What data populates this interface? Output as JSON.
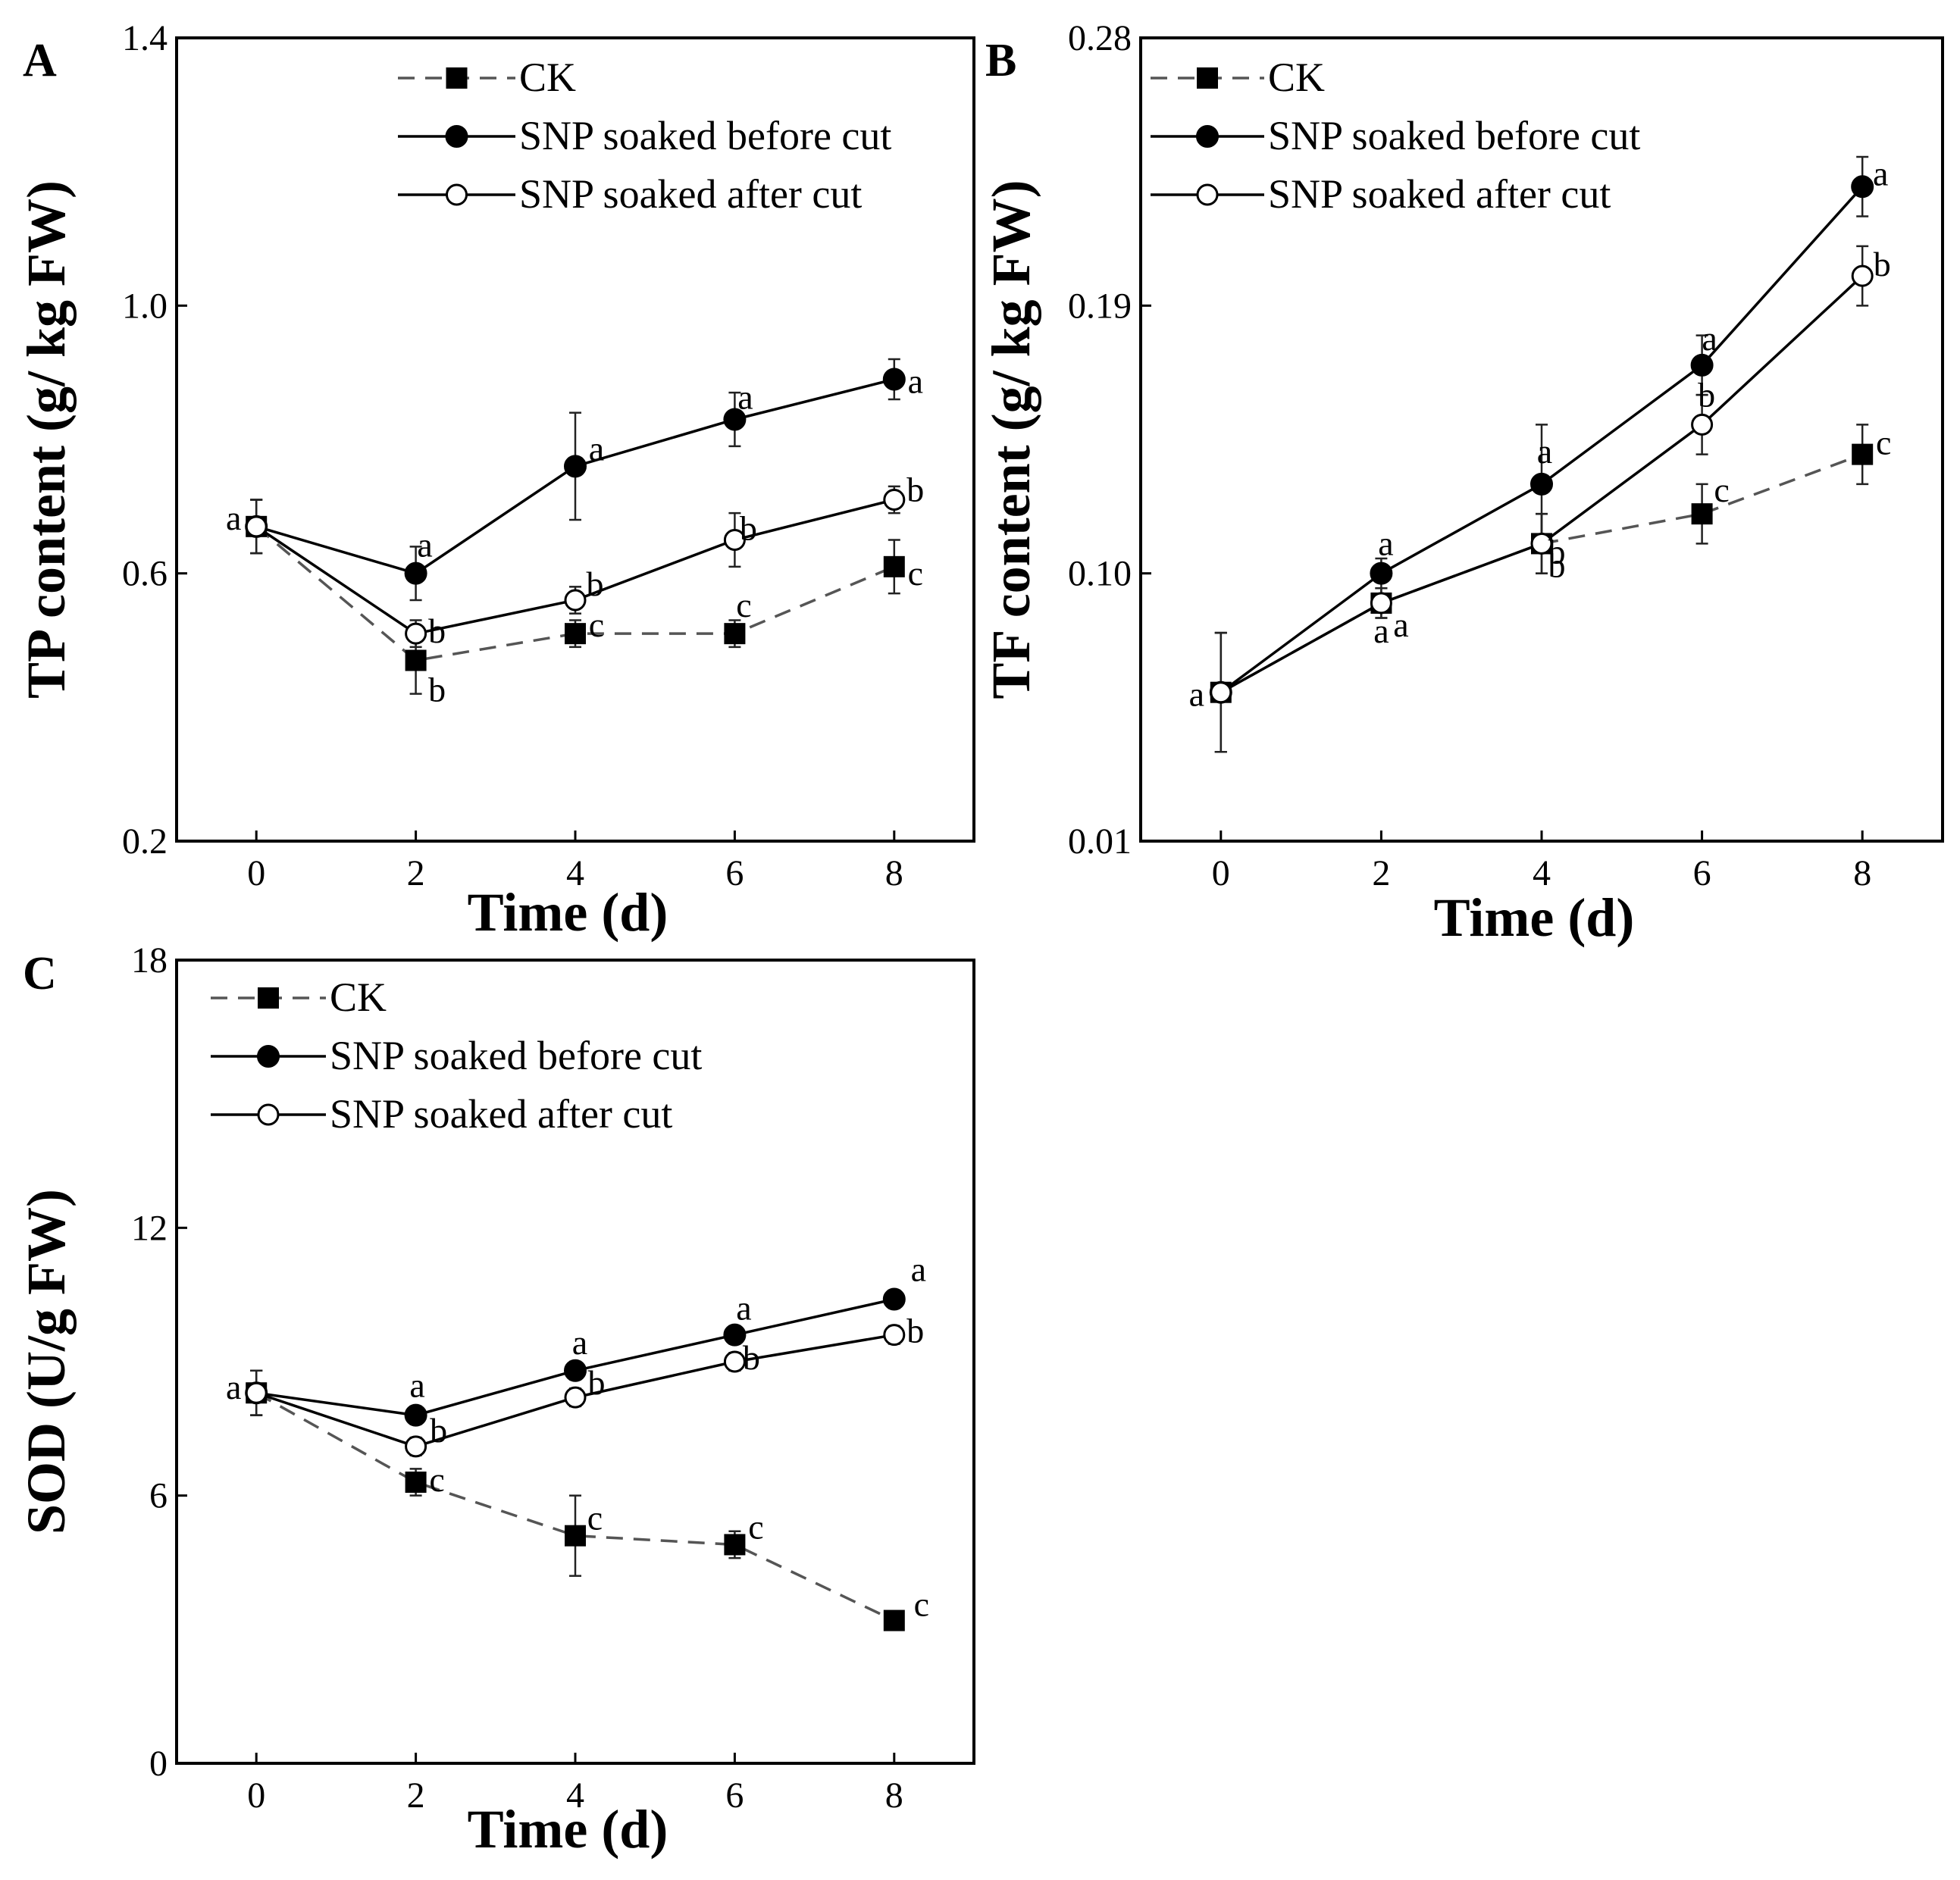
{
  "figure": {
    "colors": {
      "axis": "#000000",
      "ck_line": "#555555",
      "snp_line": "#000000",
      "background": "#ffffff"
    }
  },
  "chart_data": [
    {
      "panel_label": "A",
      "type": "line",
      "title": "",
      "xlabel": "Time (d)",
      "ylabel": "TP content (g/ kg FW)",
      "x": [
        0,
        2,
        4,
        6,
        8
      ],
      "xticks": [
        "0",
        "2",
        "4",
        "6",
        "8"
      ],
      "xlim": [
        -1,
        9
      ],
      "yticks": [
        "0.2",
        "0.6",
        "1.0",
        "1.4"
      ],
      "ytick_values": [
        0.2,
        0.6,
        1.0,
        1.4
      ],
      "ylim": [
        0.2,
        1.4
      ],
      "legend": [
        "CK",
        "SNP soaked  before cut",
        "SNP soaked  after cut"
      ],
      "legend_position": "top-right",
      "series": [
        {
          "name": "CK",
          "style": "dashed",
          "marker": "square",
          "values": [
            0.67,
            0.47,
            0.51,
            0.51,
            0.61
          ],
          "errors": [
            0.04,
            0.05,
            0.02,
            0.02,
            0.04
          ],
          "letters": [
            "",
            "b",
            "c",
            "c",
            "c"
          ]
        },
        {
          "name": "SNP soaked  before cut",
          "style": "solid",
          "marker": "filled-circle",
          "values": [
            0.67,
            0.6,
            0.76,
            0.83,
            0.89
          ],
          "errors": [
            0.04,
            0.04,
            0.08,
            0.04,
            0.03
          ],
          "letters": [
            "a",
            "a",
            "a",
            "a",
            "a"
          ]
        },
        {
          "name": "SNP soaked  after cut",
          "style": "solid",
          "marker": "open-circle",
          "values": [
            0.67,
            0.51,
            0.56,
            0.65,
            0.71
          ],
          "errors": [
            0.04,
            0.02,
            0.02,
            0.04,
            0.02
          ],
          "letters": [
            "",
            "b",
            "b",
            "b",
            "b"
          ]
        }
      ]
    },
    {
      "panel_label": "B",
      "type": "line",
      "title": "",
      "xlabel": "Time (d)",
      "ylabel": "TF content (g/ kg FW)",
      "x": [
        0,
        2,
        4,
        6,
        8
      ],
      "xticks": [
        "0",
        "2",
        "4",
        "6",
        "8"
      ],
      "xlim": [
        -1,
        9
      ],
      "yticks": [
        "0.01",
        "0.10",
        "0.19",
        "0.28"
      ],
      "ytick_values": [
        0.01,
        0.1,
        0.19,
        0.28
      ],
      "ylim": [
        0.01,
        0.28
      ],
      "legend": [
        "CK",
        "SNP soaked  before cut",
        "SNP soaked  after cut"
      ],
      "legend_position": "top-left",
      "series": [
        {
          "name": "CK",
          "style": "dashed",
          "marker": "square",
          "values": [
            0.06,
            0.09,
            0.11,
            0.12,
            0.14
          ],
          "errors": [
            0.02,
            0.005,
            0.01,
            0.01,
            0.01
          ],
          "letters": [
            "",
            "a",
            "b",
            "c",
            "c"
          ]
        },
        {
          "name": "SNP soaked  before cut",
          "style": "solid",
          "marker": "filled-circle",
          "values": [
            0.06,
            0.1,
            0.13,
            0.17,
            0.23
          ],
          "errors": [
            0.02,
            0.005,
            0.02,
            0.01,
            0.01
          ],
          "letters": [
            "a",
            "a",
            "a",
            "a",
            "a"
          ]
        },
        {
          "name": "SNP soaked  after cut",
          "style": "solid",
          "marker": "open-circle",
          "values": [
            0.06,
            0.09,
            0.11,
            0.15,
            0.2
          ],
          "errors": [
            0.02,
            0.005,
            0.01,
            0.01,
            0.01
          ],
          "letters": [
            "",
            "a",
            "b",
            "b",
            "b"
          ]
        }
      ]
    },
    {
      "panel_label": "C",
      "type": "line",
      "title": "",
      "xlabel": "Time (d)",
      "ylabel": "SOD (U/g FW)",
      "x": [
        0,
        2,
        4,
        6,
        8
      ],
      "xticks": [
        "0",
        "2",
        "4",
        "6",
        "8"
      ],
      "xlim": [
        -1,
        9
      ],
      "yticks": [
        "0",
        "6",
        "12",
        "18"
      ],
      "ytick_values": [
        0,
        6,
        12,
        18
      ],
      "ylim": [
        0,
        18
      ],
      "legend": [
        "CK",
        "SNP soaked  before cut",
        "SNP soaked  after cut"
      ],
      "legend_position": "top-left",
      "series": [
        {
          "name": "CK",
          "style": "dashed",
          "marker": "square",
          "values": [
            8.3,
            6.3,
            5.1,
            4.9,
            3.2
          ],
          "errors": [
            0.5,
            0.3,
            0.9,
            0.3,
            0.2
          ],
          "letters": [
            "",
            "c",
            "c",
            "c",
            "c"
          ]
        },
        {
          "name": "SNP soaked  before cut",
          "style": "solid",
          "marker": "filled-circle",
          "values": [
            8.3,
            7.8,
            8.8,
            9.6,
            10.4
          ],
          "errors": [
            0.5,
            0.2,
            0.2,
            0.2,
            0.2
          ],
          "letters": [
            "a",
            "a",
            "a",
            "a",
            "a"
          ]
        },
        {
          "name": "SNP soaked  after cut",
          "style": "solid",
          "marker": "open-circle",
          "values": [
            8.3,
            7.1,
            8.2,
            9.0,
            9.6
          ],
          "errors": [
            0.5,
            0.2,
            0.2,
            0.2,
            0.2
          ],
          "letters": [
            "",
            "b",
            "b",
            "b",
            "b"
          ]
        }
      ]
    }
  ]
}
